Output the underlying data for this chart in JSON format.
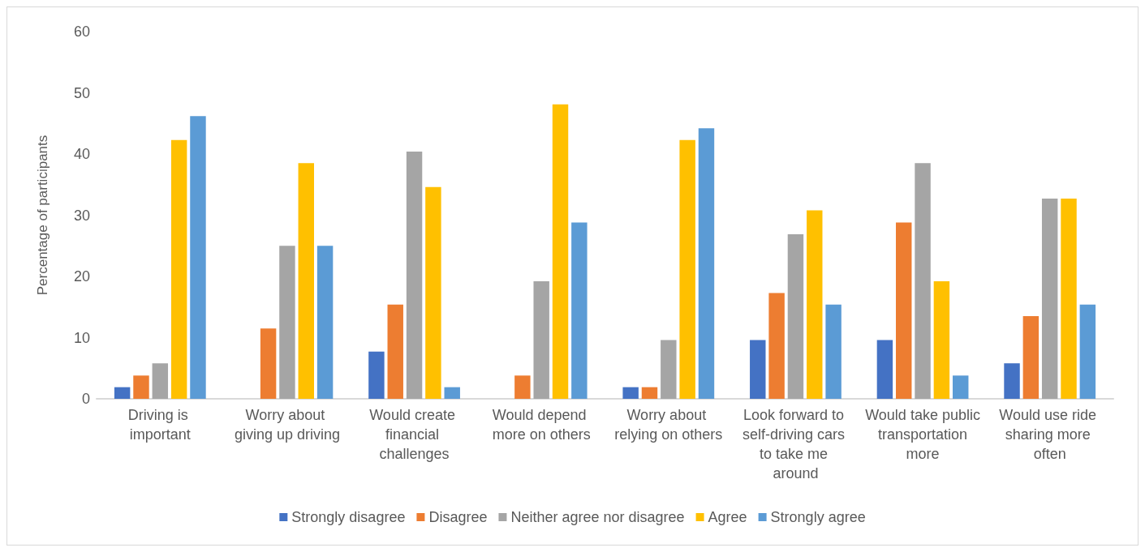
{
  "chart_data": {
    "type": "bar",
    "ylabel": "Percentage of participants",
    "categories": [
      "Driving is important",
      "Worry about giving up driving",
      "Would create financial challenges",
      "Would depend more on others",
      "Worry about relying on others",
      "Look forward to self-driving cars to take me around",
      "Would take public transportation more",
      "Would use ride sharing more often"
    ],
    "series": [
      {
        "name": "Strongly disagree",
        "color": "#4472c4",
        "values": [
          1.9,
          0,
          7.7,
          0,
          1.9,
          9.6,
          9.6,
          5.8
        ]
      },
      {
        "name": "Disagree",
        "color": "#ed7d31",
        "values": [
          3.8,
          11.5,
          15.4,
          3.8,
          1.9,
          17.3,
          28.8,
          13.5
        ]
      },
      {
        "name": "Neither agree nor disagree",
        "color": "#a5a5a5",
        "values": [
          5.8,
          25.0,
          40.4,
          19.2,
          9.6,
          26.9,
          38.5,
          32.7
        ]
      },
      {
        "name": "Agree",
        "color": "#ffc000",
        "values": [
          42.3,
          38.5,
          34.6,
          48.1,
          42.3,
          30.8,
          19.2,
          32.7
        ]
      },
      {
        "name": "Strongly agree",
        "color": "#5b9bd5",
        "values": [
          46.2,
          25.0,
          1.9,
          28.8,
          44.2,
          15.4,
          3.8,
          15.4
        ]
      }
    ],
    "ylim": [
      0,
      60
    ],
    "yticks": [
      0,
      10,
      20,
      30,
      40,
      50,
      60
    ],
    "grid": false,
    "legend": "bottom"
  }
}
